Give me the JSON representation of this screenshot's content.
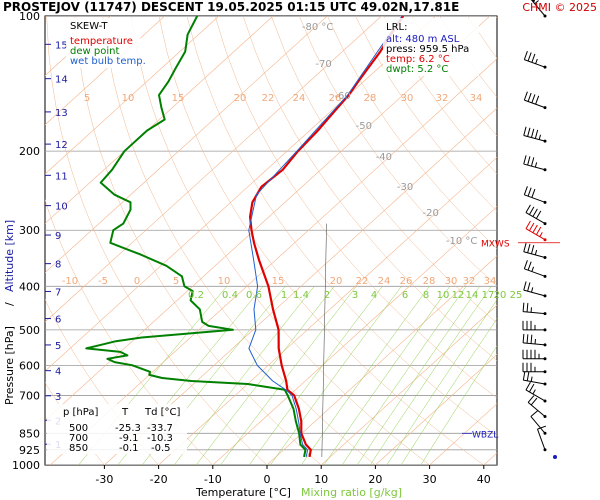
{
  "header": {
    "title": "PROSTEJOV (11747)   DESCENT   19.05.2025 01:15 UTC  49.02N,17.81E",
    "copyright": "CHMI © 2025"
  },
  "legend": {
    "title": "SKEW-T",
    "items": [
      {
        "label": "temperature",
        "color": "#e00000"
      },
      {
        "label": "dew point",
        "color": "#008000"
      },
      {
        "label": "wet bulb temp.",
        "color": "#2060d0"
      }
    ]
  },
  "lrl": {
    "title": "LRL:",
    "lines": [
      {
        "text": "alt: 480 m ASL",
        "color": "#1a1ac0"
      },
      {
        "text": "press: 959.5 hPa",
        "color": "#000000"
      },
      {
        "text": "temp: 6.2 °C",
        "color": "#e00000"
      },
      {
        "text": "dwpt: 5.2 °C",
        "color": "#008000"
      }
    ]
  },
  "markers": {
    "mxws": "MXWS",
    "wbzl": "WBZL"
  },
  "table": {
    "headers": [
      "p [hPa]",
      "T",
      "Td [°C]"
    ],
    "rows": [
      [
        "500",
        "-25.3",
        "-33.7"
      ],
      [
        "700",
        "-9.1",
        "-10.3"
      ],
      [
        "850",
        "-0.1",
        "-0.5"
      ]
    ]
  },
  "chart_data": {
    "type": "line",
    "diagram": "skew-t",
    "xlabel": "Temperature [°C]",
    "xlabel2": "Mixing ratio [g/kg]",
    "ylabel": "Pressure [hPa]",
    "ylabel_sep": "  /  ",
    "ylabel2": "Altitude [km]",
    "x_ticks": [
      -30,
      -20,
      -10,
      0,
      10,
      20,
      30,
      40
    ],
    "xlim": [
      -36,
      45
    ],
    "ylim": [
      1000,
      100
    ],
    "y_ticks": [
      100,
      200,
      300,
      400,
      500,
      600,
      700,
      850,
      925,
      1000
    ],
    "altitude_ticks": [
      1,
      2,
      3,
      4,
      5,
      6,
      7,
      8,
      9,
      10,
      11,
      12,
      13,
      14,
      15,
      16
    ],
    "isotherm_labels_upper": [
      -80,
      -70,
      -60,
      -50,
      -40,
      -30,
      -20,
      -10
    ],
    "isotherm_labels_upper_text": [
      "-80 °C",
      "-70",
      "-60",
      "-50",
      "-40",
      "-30",
      "-20",
      "-10 °C"
    ],
    "dry_adiabat_labels_200": [
      5,
      10,
      15,
      20,
      22,
      24,
      26,
      28,
      30,
      32,
      34
    ],
    "dry_adiabat_labels_400": [
      -10,
      -5,
      0,
      5,
      10,
      15,
      20,
      22,
      24,
      26,
      28,
      30,
      32,
      34
    ],
    "mixing_ratio_labels": [
      0.2,
      0.4,
      0.6,
      1,
      1.4,
      2,
      3,
      4,
      6,
      8,
      10,
      12,
      14,
      17,
      20,
      25
    ],
    "series": [
      {
        "name": "temperature",
        "color": "#e00000",
        "points": [
          [
            959.5,
            6.2
          ],
          [
            925,
            5.0
          ],
          [
            900,
            3.0
          ],
          [
            850,
            -0.1
          ],
          [
            800,
            -2.5
          ],
          [
            750,
            -5.5
          ],
          [
            700,
            -9.1
          ],
          [
            680,
            -11.5
          ],
          [
            650,
            -13.5
          ],
          [
            600,
            -17.5
          ],
          [
            550,
            -21.5
          ],
          [
            500,
            -25.3
          ],
          [
            450,
            -30.5
          ],
          [
            400,
            -36.0
          ],
          [
            350,
            -43.0
          ],
          [
            320,
            -47.5
          ],
          [
            300,
            -50.5
          ],
          [
            280,
            -53.5
          ],
          [
            260,
            -56.0
          ],
          [
            240,
            -57.5
          ],
          [
            220,
            -57.0
          ],
          [
            200,
            -58.0
          ],
          [
            180,
            -58.5
          ],
          [
            160,
            -59.5
          ],
          [
            150,
            -60.0
          ],
          [
            140,
            -61.0
          ],
          [
            120,
            -63.0
          ],
          [
            110,
            -64.5
          ],
          [
            100,
            -66.0
          ]
        ]
      },
      {
        "name": "dew point",
        "color": "#008000",
        "points": [
          [
            959.5,
            5.2
          ],
          [
            925,
            4.0
          ],
          [
            900,
            2.0
          ],
          [
            850,
            -0.5
          ],
          [
            800,
            -3.5
          ],
          [
            750,
            -6.5
          ],
          [
            700,
            -10.3
          ],
          [
            680,
            -12.0
          ],
          [
            660,
            -20.0
          ],
          [
            650,
            -31.0
          ],
          [
            640,
            -37.0
          ],
          [
            630,
            -40.0
          ],
          [
            620,
            -40.5
          ],
          [
            600,
            -45.0
          ],
          [
            590,
            -49.0
          ],
          [
            580,
            -51.0
          ],
          [
            570,
            -48.0
          ],
          [
            560,
            -50.0
          ],
          [
            550,
            -57.0
          ],
          [
            540,
            -55.0
          ],
          [
            530,
            -53.0
          ],
          [
            520,
            -49.0
          ],
          [
            500,
            -33.7
          ],
          [
            490,
            -39.0
          ],
          [
            480,
            -41.0
          ],
          [
            450,
            -44.0
          ],
          [
            430,
            -47.5
          ],
          [
            410,
            -49.0
          ],
          [
            400,
            -51.5
          ],
          [
            380,
            -54.0
          ],
          [
            360,
            -59.0
          ],
          [
            340,
            -66.0
          ],
          [
            320,
            -74.0
          ],
          [
            300,
            -76.0
          ],
          [
            290,
            -75.5
          ],
          [
            270,
            -77.0
          ],
          [
            260,
            -78.5
          ],
          [
            250,
            -83.0
          ],
          [
            235,
            -88.0
          ],
          [
            220,
            -88.5
          ],
          [
            200,
            -90.0
          ],
          [
            180,
            -90.0
          ],
          [
            170,
            -89.0
          ],
          [
            160,
            -92.0
          ],
          [
            150,
            -95.0
          ],
          [
            140,
            -96.0
          ],
          [
            130,
            -97.5
          ],
          [
            120,
            -99.0
          ],
          [
            110,
            -102.0
          ],
          [
            100,
            -104.0
          ]
        ]
      },
      {
        "name": "wet bulb temp.",
        "color": "#2060d0",
        "points": [
          [
            959.5,
            5.6
          ],
          [
            925,
            4.4
          ],
          [
            900,
            2.4
          ],
          [
            850,
            -0.3
          ],
          [
            800,
            -3.0
          ],
          [
            750,
            -6.0
          ],
          [
            700,
            -9.5
          ],
          [
            680,
            -11.8
          ],
          [
            650,
            -16.0
          ],
          [
            600,
            -22.0
          ],
          [
            550,
            -27.0
          ],
          [
            500,
            -29.5
          ],
          [
            450,
            -34.0
          ],
          [
            400,
            -38.0
          ],
          [
            350,
            -44.0
          ],
          [
            300,
            -51.0
          ],
          [
            250,
            -56.8
          ],
          [
            200,
            -58.2
          ],
          [
            150,
            -60.2
          ],
          [
            100,
            -66.2
          ]
        ]
      }
    ],
    "wind_barbs": [
      {
        "p": 100,
        "dir": 320,
        "kt": 55
      },
      {
        "p": 130,
        "dir": 290,
        "kt": 35
      },
      {
        "p": 160,
        "dir": 290,
        "kt": 40
      },
      {
        "p": 190,
        "dir": 285,
        "kt": 45
      },
      {
        "p": 220,
        "dir": 285,
        "kt": 35
      },
      {
        "p": 260,
        "dir": 290,
        "kt": 30
      },
      {
        "p": 290,
        "dir": 300,
        "kt": 40
      },
      {
        "p": 315,
        "dir": 300,
        "kt": 45,
        "max": true
      },
      {
        "p": 345,
        "dir": 285,
        "kt": 35
      },
      {
        "p": 380,
        "dir": 290,
        "kt": 25
      },
      {
        "p": 420,
        "dir": 285,
        "kt": 25
      },
      {
        "p": 460,
        "dir": 275,
        "kt": 25
      },
      {
        "p": 500,
        "dir": 270,
        "kt": 35
      },
      {
        "p": 540,
        "dir": 275,
        "kt": 35
      },
      {
        "p": 580,
        "dir": 270,
        "kt": 45
      },
      {
        "p": 620,
        "dir": 270,
        "kt": 35
      },
      {
        "p": 660,
        "dir": 280,
        "kt": 25
      },
      {
        "p": 720,
        "dir": 300,
        "kt": 25
      },
      {
        "p": 780,
        "dir": 310,
        "kt": 20
      },
      {
        "p": 850,
        "dir": 320,
        "kt": 10
      },
      {
        "p": 925,
        "dir": 340,
        "kt": 10
      }
    ]
  }
}
